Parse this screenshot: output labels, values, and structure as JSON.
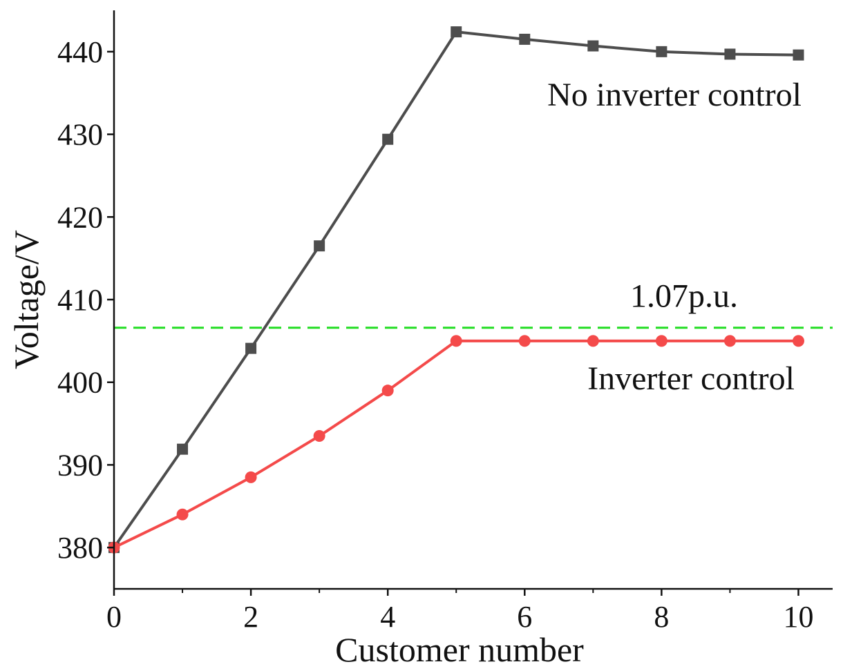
{
  "chart_data": {
    "type": "line",
    "x_label": "Customer number",
    "y_label": "Voltage/V",
    "x": [
      0,
      1,
      2,
      3,
      4,
      5,
      6,
      7,
      8,
      9,
      10
    ],
    "series": [
      {
        "name": "No inverter control",
        "color": "#4d4d4d",
        "marker": "square",
        "values": [
          380,
          391.9,
          404.1,
          416.5,
          429.4,
          442.4,
          441.5,
          440.7,
          440.0,
          439.7,
          439.6
        ]
      },
      {
        "name": "Inverter control",
        "color": "#f44a4a",
        "marker": "circle",
        "values": [
          380,
          384.0,
          388.5,
          393.5,
          399.0,
          405.0,
          405.0,
          405.0,
          405.0,
          405.0,
          405.0
        ]
      }
    ],
    "reference_lines": [
      {
        "value": 406.6,
        "label": "1.07p.u.",
        "color": "#22dd22",
        "style": "dashed"
      }
    ],
    "xlim": [
      0,
      10.5
    ],
    "xticks": [
      0,
      2,
      4,
      6,
      8,
      10
    ],
    "xminor_ticks": [
      1,
      3,
      5,
      7,
      9
    ],
    "ylim": [
      375,
      445
    ],
    "yticks": [
      380,
      390,
      400,
      410,
      420,
      430,
      440
    ],
    "grid": false
  }
}
